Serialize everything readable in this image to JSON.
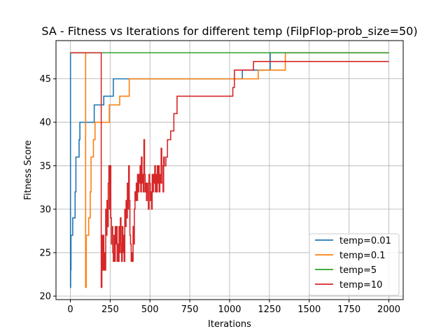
{
  "chart_data": {
    "type": "line",
    "title": "SA - Fitness vs Iterations for different temp (FilpFlop-prob_size=50)",
    "xlabel": "Iterations",
    "ylabel": "Fitness Score",
    "xlim": [
      -90,
      2090
    ],
    "ylim": [
      19.6,
      49.4
    ],
    "xticks": [
      0,
      250,
      500,
      750,
      1000,
      1250,
      1500,
      1750,
      2000
    ],
    "yticks": [
      20,
      25,
      30,
      35,
      40,
      45
    ],
    "grid": true,
    "legend_position": "lower-right",
    "step": true,
    "series": [
      {
        "name": "temp=0.01",
        "color": "#1f77b4",
        "points": [
          [
            0,
            48
          ],
          [
            1,
            21
          ],
          [
            2,
            23
          ],
          [
            4,
            27
          ],
          [
            15,
            29
          ],
          [
            30,
            32
          ],
          [
            35,
            36
          ],
          [
            55,
            38
          ],
          [
            60,
            40
          ],
          [
            150,
            42
          ],
          [
            210,
            43
          ],
          [
            270,
            45
          ],
          [
            1080,
            46
          ],
          [
            1255,
            48
          ],
          [
            2000,
            48
          ]
        ]
      },
      {
        "name": "temp=0.1",
        "color": "#ff7f0e",
        "points": [
          [
            0,
            48
          ],
          [
            95,
            48
          ],
          [
            96,
            21
          ],
          [
            100,
            27
          ],
          [
            115,
            29
          ],
          [
            125,
            32
          ],
          [
            130,
            36
          ],
          [
            145,
            38
          ],
          [
            155,
            40
          ],
          [
            245,
            42
          ],
          [
            310,
            43
          ],
          [
            370,
            45
          ],
          [
            1180,
            46
          ],
          [
            1350,
            48
          ],
          [
            2000,
            48
          ]
        ]
      },
      {
        "name": "temp=5",
        "color": "#2ca02c",
        "points": [
          [
            0,
            48
          ],
          [
            2000,
            48
          ]
        ]
      },
      {
        "name": "temp=10",
        "color": "#d62728",
        "points": [
          [
            0,
            48
          ],
          [
            193,
            48
          ],
          [
            194,
            21
          ],
          [
            198,
            27
          ],
          [
            202,
            23
          ],
          [
            206,
            27
          ],
          [
            210,
            23
          ],
          [
            214,
            25
          ],
          [
            218,
            23
          ],
          [
            222,
            30
          ],
          [
            226,
            27
          ],
          [
            230,
            31
          ],
          [
            234,
            28
          ],
          [
            238,
            33
          ],
          [
            242,
            35
          ],
          [
            246,
            30
          ],
          [
            250,
            35
          ],
          [
            254,
            29
          ],
          [
            258,
            26
          ],
          [
            262,
            28
          ],
          [
            266,
            25
          ],
          [
            270,
            24
          ],
          [
            274,
            27
          ],
          [
            278,
            24
          ],
          [
            282,
            28
          ],
          [
            286,
            26
          ],
          [
            290,
            28
          ],
          [
            294,
            24
          ],
          [
            298,
            26
          ],
          [
            302,
            24
          ],
          [
            306,
            28
          ],
          [
            310,
            25
          ],
          [
            314,
            29
          ],
          [
            318,
            26
          ],
          [
            322,
            24
          ],
          [
            326,
            28
          ],
          [
            330,
            25
          ],
          [
            334,
            27
          ],
          [
            338,
            24
          ],
          [
            342,
            30
          ],
          [
            346,
            28
          ],
          [
            350,
            31
          ],
          [
            354,
            29
          ],
          [
            358,
            33
          ],
          [
            362,
            30
          ],
          [
            366,
            35
          ],
          [
            370,
            31
          ],
          [
            374,
            27
          ],
          [
            378,
            26
          ],
          [
            382,
            24
          ],
          [
            386,
            25
          ],
          [
            390,
            24
          ],
          [
            394,
            28
          ],
          [
            398,
            26
          ],
          [
            402,
            30
          ],
          [
            406,
            32
          ],
          [
            410,
            31
          ],
          [
            414,
            33
          ],
          [
            418,
            31
          ],
          [
            422,
            34
          ],
          [
            426,
            32
          ],
          [
            430,
            34
          ],
          [
            434,
            33
          ],
          [
            438,
            35
          ],
          [
            442,
            32
          ],
          [
            446,
            36
          ],
          [
            450,
            33
          ],
          [
            454,
            34
          ],
          [
            458,
            32
          ],
          [
            462,
            38
          ],
          [
            466,
            34
          ],
          [
            470,
            32
          ],
          [
            474,
            33
          ],
          [
            478,
            31
          ],
          [
            482,
            33
          ],
          [
            486,
            32
          ],
          [
            490,
            30
          ],
          [
            494,
            34
          ],
          [
            498,
            33
          ],
          [
            502,
            31
          ],
          [
            506,
            32
          ],
          [
            510,
            30
          ],
          [
            514,
            34
          ],
          [
            518,
            32
          ],
          [
            522,
            34
          ],
          [
            526,
            33
          ],
          [
            530,
            35
          ],
          [
            534,
            32
          ],
          [
            538,
            34
          ],
          [
            542,
            32
          ],
          [
            546,
            35
          ],
          [
            550,
            33
          ],
          [
            554,
            35
          ],
          [
            558,
            32
          ],
          [
            562,
            34
          ],
          [
            566,
            33
          ],
          [
            570,
            37
          ],
          [
            574,
            35
          ],
          [
            578,
            33
          ],
          [
            582,
            32
          ],
          [
            586,
            36
          ],
          [
            590,
            35
          ],
          [
            600,
            36
          ],
          [
            610,
            38
          ],
          [
            630,
            39
          ],
          [
            650,
            41
          ],
          [
            670,
            43
          ],
          [
            1020,
            44
          ],
          [
            1030,
            46
          ],
          [
            1150,
            47
          ],
          [
            2000,
            47
          ]
        ]
      }
    ]
  }
}
